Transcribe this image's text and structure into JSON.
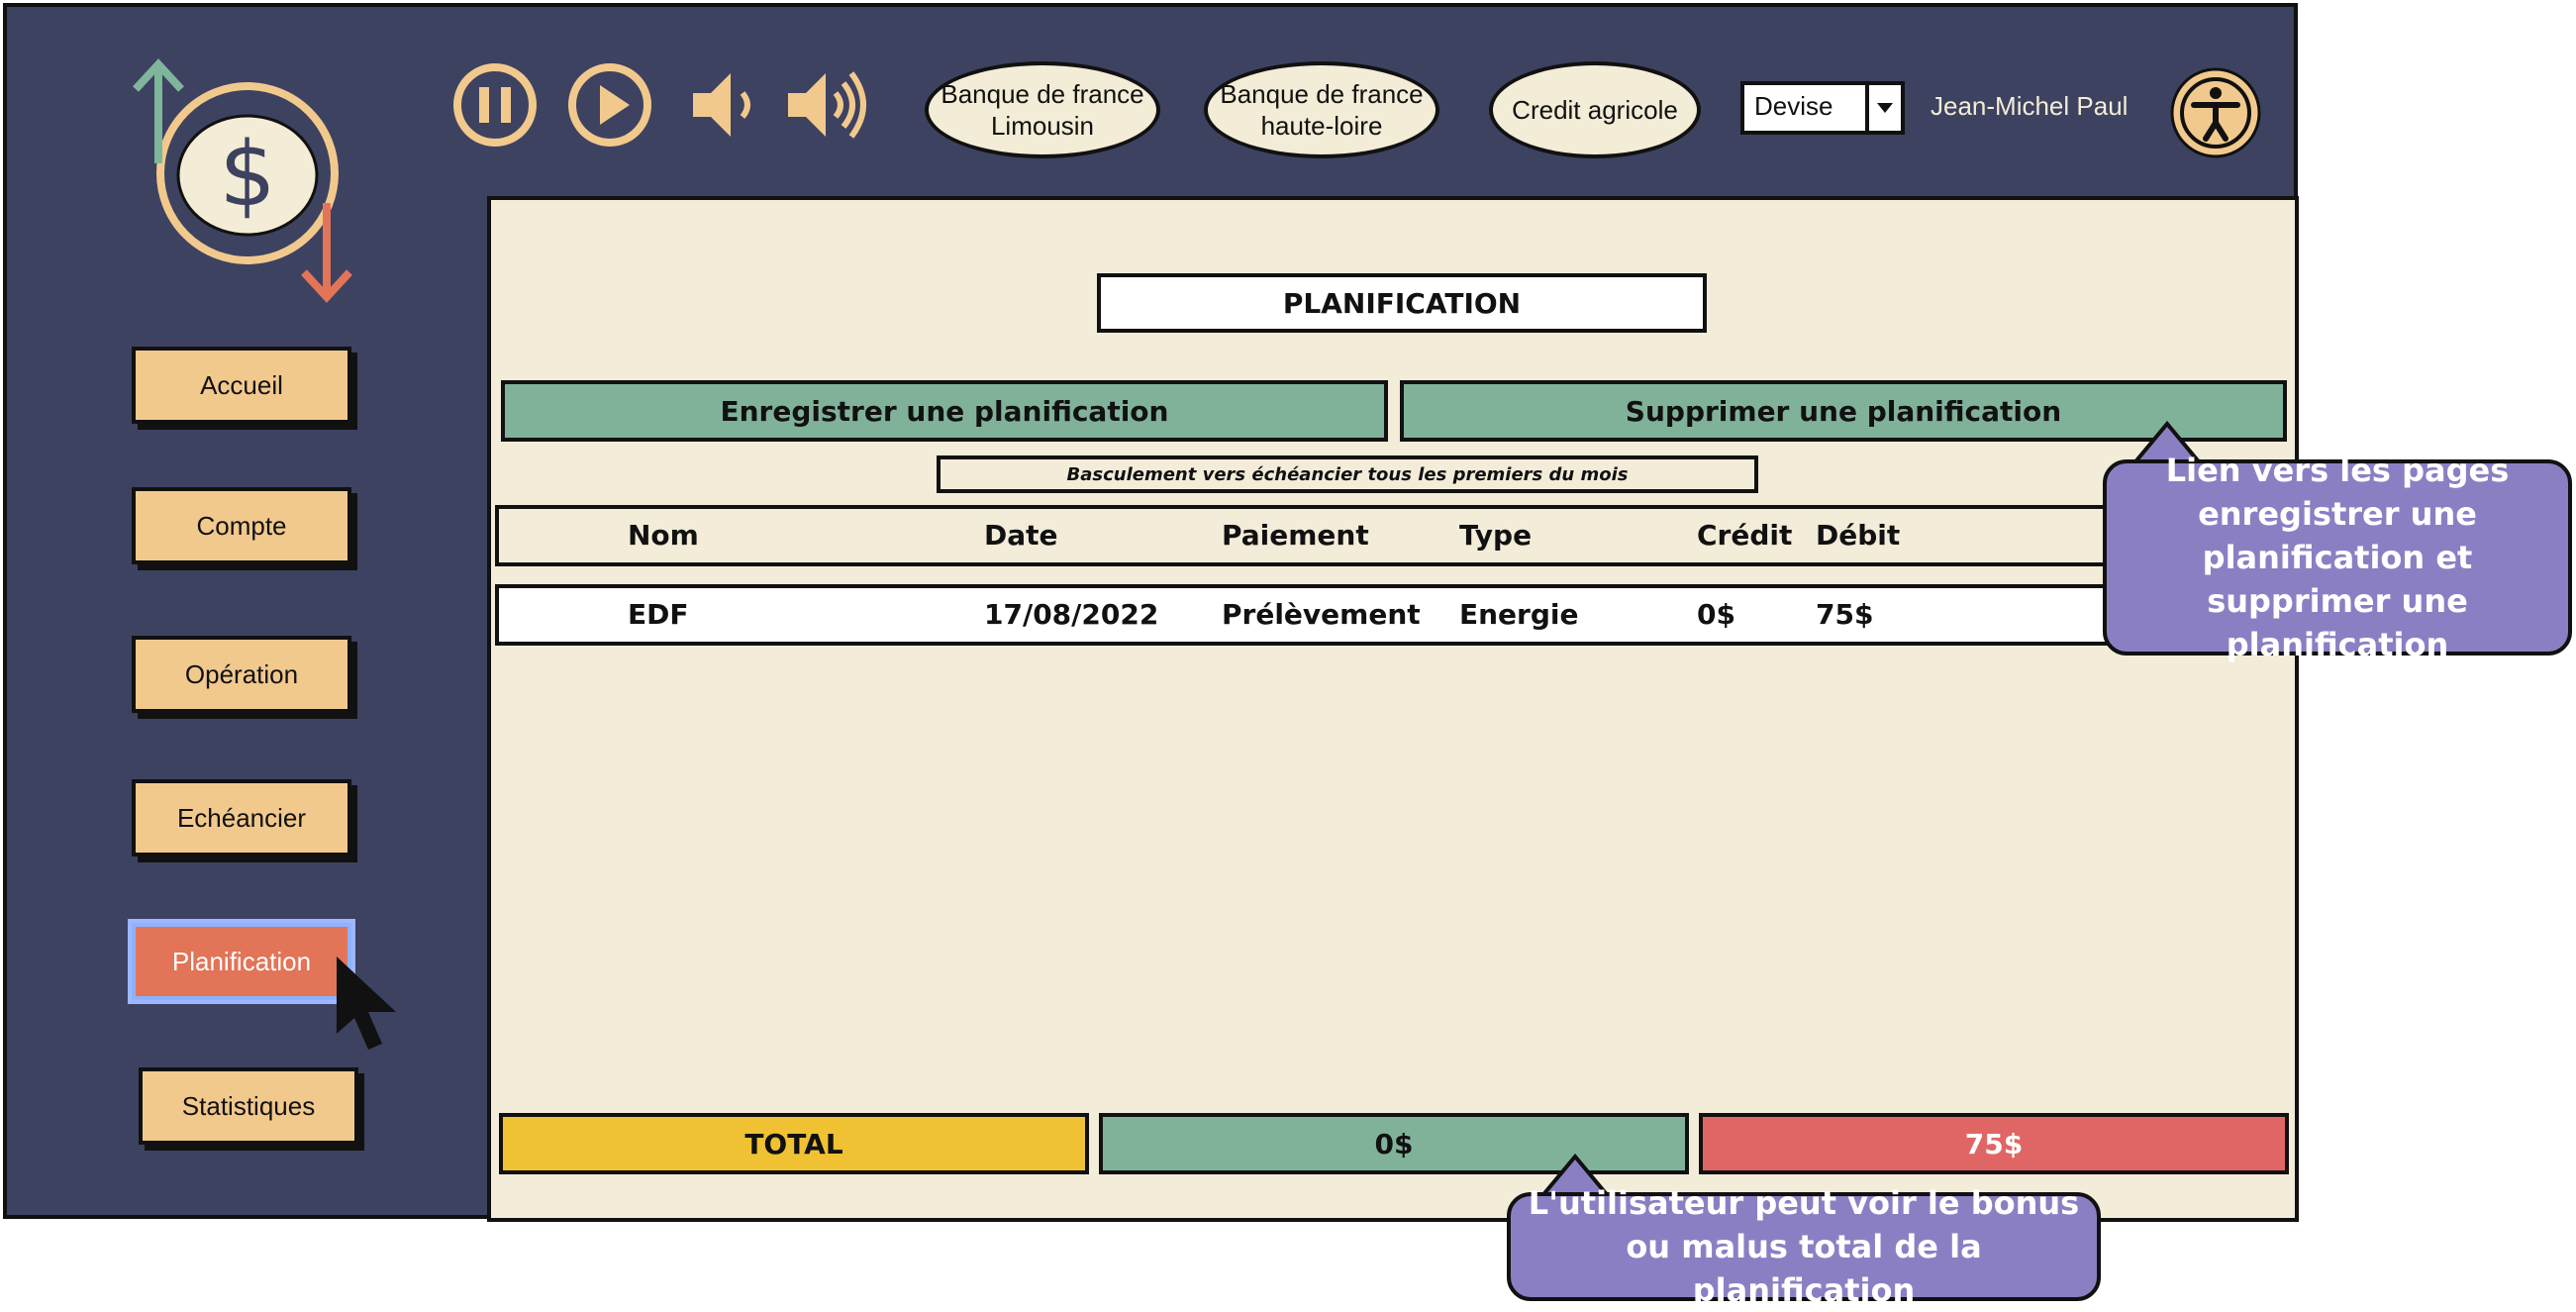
{
  "colors": {
    "frame": "#3d4260",
    "nav": "#f2c98d",
    "active": "#e27458",
    "green": "#80b29a",
    "yellow": "#f0c233",
    "red": "#e06666",
    "callout": "#8b7fc4"
  },
  "sidebar": {
    "items": [
      {
        "label": "Accueil"
      },
      {
        "label": "Compte"
      },
      {
        "label": "Opération"
      },
      {
        "label": "Echéancier"
      },
      {
        "label": "Planification"
      },
      {
        "label": "Statistiques"
      }
    ],
    "active_index": 4
  },
  "topbar": {
    "icons": [
      "pause-icon",
      "play-icon",
      "volume-low-icon",
      "volume-high-icon"
    ],
    "banks": [
      "Banque de france Limousin",
      "Banque de france haute-loire",
      "Credit agricole"
    ],
    "currency_select": "Devise",
    "user_name": "Jean-Michel Paul",
    "accessibility_icon": "accessibility-icon"
  },
  "main": {
    "title": "PLANIFICATION",
    "actions": {
      "save": "Enregistrer une planification",
      "delete": "Supprimer une planification"
    },
    "note": "Basculement vers échéancier tous les premiers du mois",
    "table": {
      "headers": [
        "Nom",
        "Date",
        "Paiement",
        "Type",
        "Crédit",
        "Débit"
      ],
      "rows": [
        [
          "EDF",
          "17/08/2022",
          "Prélèvement",
          "Energie",
          "0$",
          "75$"
        ]
      ]
    },
    "totals": {
      "label": "TOTAL",
      "credit": "0$",
      "debit": "75$"
    }
  },
  "callouts": {
    "links": "Lien vers les pages enregistrer une planification et supprimer une planification",
    "totals": "L'utilisateur peut voir le bonus ou malus total de la planification"
  }
}
